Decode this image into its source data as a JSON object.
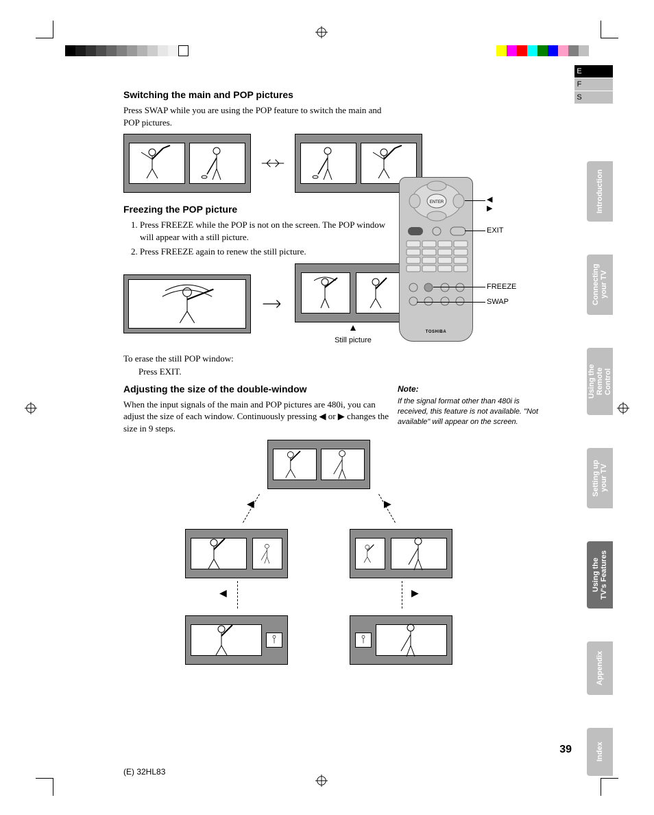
{
  "colors": {
    "page_bg": "#ffffff",
    "panel_gray": "#8c8c8c",
    "tab_light": "#bfbfbf",
    "tab_dark": "#6f6f6f",
    "text": "#000000"
  },
  "print_marks": {
    "gray_steps": [
      "#000000",
      "#1a1a1a",
      "#333333",
      "#4d4d4d",
      "#666666",
      "#808080",
      "#999999",
      "#b3b3b3",
      "#cccccc",
      "#e6e6e6",
      "#f2f2f2",
      "#ffffff"
    ],
    "color_bars": [
      "#ffff00",
      "#ff00ff",
      "#ff0000",
      "#00ffff",
      "#008000",
      "#0000ff",
      "#ff9ec6",
      "#808080",
      "#c0c0c0"
    ]
  },
  "lang_tabs": [
    {
      "key": "E",
      "bg": "#000000",
      "fg": "#ffffff",
      "bar": "#000000"
    },
    {
      "key": "F",
      "bg": "#c0c0c0",
      "fg": "#000000",
      "bar": "#c0c0c0"
    },
    {
      "key": "S",
      "bg": "#c0c0c0",
      "fg": "#000000",
      "bar": "#c0c0c0"
    }
  ],
  "section_tabs": [
    {
      "label": "Introduction",
      "active": false
    },
    {
      "label": "Connecting your TV",
      "active": false
    },
    {
      "label": "Using the Remote Control",
      "active": false
    },
    {
      "label": "Setting up your TV",
      "active": false
    },
    {
      "label": "Using the TV's Features",
      "active": true
    },
    {
      "label": "Appendix",
      "active": false
    },
    {
      "label": "Index",
      "active": false
    }
  ],
  "sections": {
    "swap": {
      "heading": "Switching the main and POP pictures",
      "body": "Press SWAP while you are using the POP feature to switch the main and POP pictures."
    },
    "freeze": {
      "heading": "Freezing the POP picture",
      "steps": [
        "Press FREEZE while the POP is not on the screen. The POP window will appear with a still picture.",
        "Press FREEZE again to renew the still picture."
      ],
      "erase_label": "To erase the still POP window:",
      "erase_action": "Press EXIT.",
      "still_caption": "Still picture"
    },
    "adjust": {
      "heading": "Adjusting the size of the double-window",
      "body": "When the input signals of the main and POP pictures are 480i, you can adjust the size of each window. Continuously pressing ◀ or ▶ changes the size in 9 steps."
    }
  },
  "remote_callouts": {
    "arrows": "◀ ▶",
    "exit": "EXIT",
    "freeze": "FREEZE",
    "swap": "SWAP",
    "brand": "TOSHIBA"
  },
  "note": {
    "heading": "Note:",
    "body": "If the signal format other than 480i is received, this feature is not available. \"Not available\" will appear on the screen."
  },
  "footer": {
    "page_number": "39",
    "doc_code": "(E) 32HL83"
  }
}
